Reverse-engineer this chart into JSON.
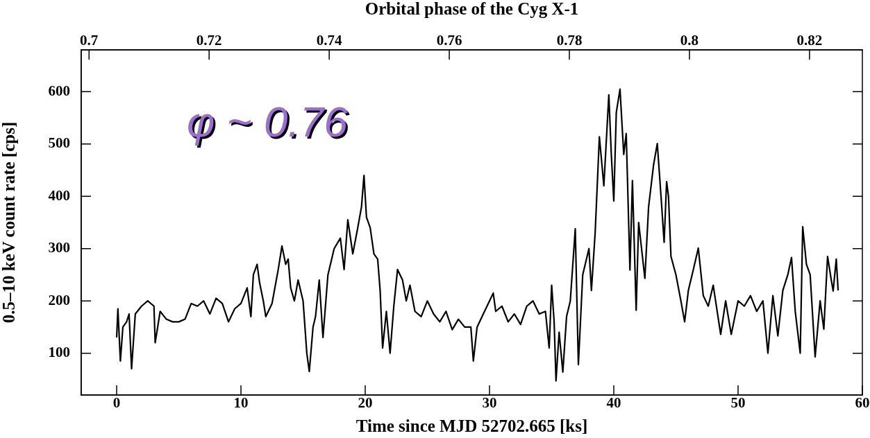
{
  "chart_data": {
    "type": "line",
    "x2label": "Orbital phase of the Cyg X-1",
    "xlabel": "Time since MJD 52702.665 [ks]",
    "ylabel": "0.5–10 keV count rate [cps]",
    "annotations": [
      "φ ~ 0.76"
    ],
    "xlim": [
      -2.85,
      60
    ],
    "xticks": [
      0,
      10,
      20,
      30,
      40,
      50,
      60
    ],
    "x2lim": [
      0.6987,
      0.8288
    ],
    "x2ticks": [
      0.7,
      0.72,
      0.74,
      0.76,
      0.78,
      0.8,
      0.82
    ],
    "ylim": [
      20,
      680
    ],
    "yticks": [
      100,
      200,
      300,
      400,
      500,
      600
    ],
    "grid": false,
    "legend": false,
    "marker": "none",
    "line_style": "solid",
    "series": [
      {
        "color": "#000000",
        "x": [
          0,
          0.1,
          0.3,
          0.5,
          0.8,
          1.0,
          1.2,
          1.5,
          2.0,
          2.5,
          3.0,
          3.1,
          3.5,
          4.0,
          4.5,
          5.0,
          5.5,
          6.0,
          6.5,
          7.0,
          7.5,
          8.0,
          8.5,
          9.0,
          9.5,
          10.0,
          10.5,
          10.8,
          11.0,
          11.3,
          11.5,
          11.8,
          12.0,
          12.5,
          13.0,
          13.3,
          13.6,
          13.8,
          14.0,
          14.3,
          14.6,
          15.0,
          15.3,
          15.5,
          15.8,
          16.0,
          16.3,
          16.6,
          17.0,
          17.5,
          18.0,
          18.3,
          18.6,
          19.0,
          19.4,
          19.7,
          19.9,
          20.1,
          20.4,
          20.7,
          21.0,
          21.2,
          21.4,
          21.7,
          22.0,
          22.3,
          22.6,
          23.0,
          23.3,
          23.6,
          24.0,
          24.5,
          25.0,
          25.5,
          26.0,
          26.5,
          27.0,
          27.5,
          28.0,
          28.5,
          28.7,
          29.0,
          29.5,
          30.0,
          30.3,
          30.5,
          31.0,
          31.5,
          32.0,
          32.5,
          33.0,
          33.5,
          34.0,
          34.5,
          34.8,
          35.0,
          35.2,
          35.35,
          35.6,
          35.9,
          36.2,
          36.5,
          36.9,
          37.15,
          37.5,
          38.0,
          38.2,
          38.5,
          38.84,
          39.2,
          39.6,
          39.8,
          40.0,
          40.2,
          40.5,
          40.8,
          41.0,
          41.3,
          41.5,
          41.8,
          42.0,
          42.5,
          42.8,
          43.2,
          43.5,
          43.8,
          44.05,
          44.25,
          44.4,
          44.6,
          45.0,
          45.4,
          45.7,
          46.0,
          46.4,
          46.8,
          47.2,
          47.6,
          48.0,
          48.6,
          49.0,
          49.45,
          50.0,
          50.5,
          51.0,
          51.5,
          52.0,
          52.4,
          52.8,
          53.2,
          53.6,
          54.0,
          54.3,
          54.6,
          55.0,
          55.2,
          55.5,
          55.8,
          56.2,
          56.6,
          56.9,
          57.2,
          57.5,
          57.65,
          57.9,
          58.05
        ],
        "values": [
          130,
          185,
          85,
          150,
          160,
          175,
          70,
          175,
          190,
          200,
          190,
          120,
          180,
          165,
          160,
          160,
          165,
          195,
          190,
          200,
          175,
          205,
          195,
          160,
          185,
          195,
          225,
          170,
          250,
          270,
          235,
          200,
          170,
          195,
          260,
          305,
          270,
          280,
          225,
          200,
          240,
          200,
          100,
          65,
          150,
          170,
          240,
          130,
          250,
          300,
          320,
          260,
          355,
          290,
          340,
          380,
          440,
          360,
          340,
          290,
          280,
          220,
          110,
          180,
          100,
          190,
          260,
          240,
          200,
          230,
          180,
          170,
          200,
          175,
          160,
          180,
          145,
          165,
          150,
          150,
          85,
          150,
          175,
          200,
          215,
          180,
          190,
          160,
          175,
          155,
          190,
          200,
          175,
          180,
          110,
          230,
          160,
          47,
          140,
          64,
          170,
          200,
          338,
          78,
          250,
          300,
          220,
          330,
          514,
          420,
          594,
          480,
          391,
          560,
          605,
          480,
          520,
          259,
          430,
          182,
          350,
          243,
          380,
          460,
          501,
          400,
          312,
          428,
          400,
          285,
          250,
          200,
          160,
          220,
          260,
          301,
          210,
          190,
          230,
          136,
          200,
          136,
          200,
          190,
          210,
          180,
          200,
          100,
          210,
          133,
          220,
          250,
          283,
          180,
          100,
          342,
          270,
          250,
          93,
          200,
          146,
          285,
          240,
          219,
          280,
          220
        ]
      }
    ]
  }
}
